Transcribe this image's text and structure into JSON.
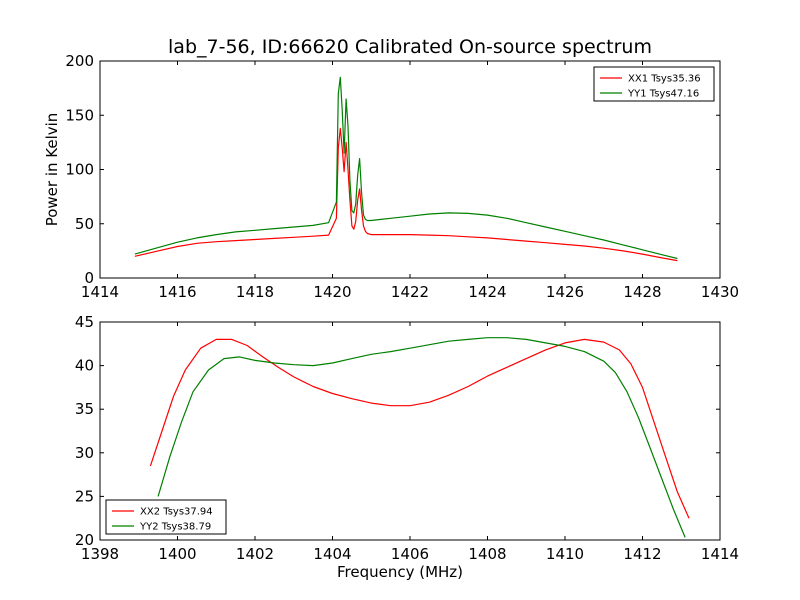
{
  "figure": {
    "title": "lab_7-56, ID:66620 Calibrated On-source spectrum"
  },
  "chart_data": [
    {
      "type": "line",
      "title": "lab_7-56, ID:66620 Calibrated On-source spectrum",
      "xlabel": "",
      "ylabel": "Power in Kelvin",
      "xlim": [
        1414,
        1430
      ],
      "ylim": [
        0,
        200
      ],
      "xticks": [
        1414,
        1416,
        1418,
        1420,
        1422,
        1424,
        1426,
        1428,
        1430
      ],
      "yticks": [
        0,
        50,
        100,
        150,
        200
      ],
      "grid": false,
      "legend_position": "top-right",
      "series": [
        {
          "name": "XX1 Tsys35.36",
          "color": "#ff0000",
          "x": [
            1414.9,
            1415.5,
            1416.0,
            1416.5,
            1417.0,
            1417.5,
            1418.0,
            1418.5,
            1419.0,
            1419.5,
            1419.9,
            1420.1,
            1420.15,
            1420.2,
            1420.25,
            1420.3,
            1420.35,
            1420.4,
            1420.45,
            1420.5,
            1420.55,
            1420.6,
            1420.65,
            1420.7,
            1420.75,
            1420.8,
            1420.85,
            1420.9,
            1421.0,
            1421.5,
            1422.0,
            1422.5,
            1423.0,
            1423.5,
            1424.0,
            1424.5,
            1425.0,
            1425.5,
            1426.0,
            1426.5,
            1427.0,
            1427.5,
            1428.0,
            1428.5,
            1428.9
          ],
          "y": [
            20,
            25,
            29,
            32,
            33.5,
            34.5,
            35.5,
            36.5,
            37.5,
            38.5,
            39.5,
            55,
            120,
            138,
            120,
            98,
            125,
            100,
            72,
            48,
            45,
            52,
            72,
            82,
            62,
            48,
            43,
            41,
            40,
            40,
            40,
            39.5,
            39,
            38,
            37,
            35.5,
            34,
            32.5,
            31,
            29.5,
            27.5,
            25,
            22,
            18.5,
            16
          ]
        },
        {
          "name": "YY1 Tsys47.16",
          "color": "#008000",
          "x": [
            1414.9,
            1415.5,
            1416.0,
            1416.5,
            1417.0,
            1417.5,
            1418.0,
            1418.5,
            1419.0,
            1419.5,
            1419.9,
            1420.1,
            1420.15,
            1420.2,
            1420.25,
            1420.3,
            1420.35,
            1420.4,
            1420.45,
            1420.5,
            1420.55,
            1420.6,
            1420.65,
            1420.7,
            1420.75,
            1420.8,
            1420.85,
            1420.9,
            1421.0,
            1421.5,
            1422.0,
            1422.5,
            1423.0,
            1423.5,
            1424.0,
            1424.5,
            1425.0,
            1425.5,
            1426.0,
            1426.5,
            1427.0,
            1427.5,
            1428.0,
            1428.5,
            1428.9
          ],
          "y": [
            22,
            28,
            33,
            37,
            40,
            42.5,
            44,
            45.5,
            47,
            48.5,
            51,
            70,
            170,
            185,
            155,
            115,
            165,
            140,
            90,
            62,
            60,
            68,
            95,
            110,
            78,
            58,
            54,
            53,
            53,
            55,
            57,
            59,
            60,
            59.5,
            58,
            55,
            51,
            47,
            43,
            39,
            35,
            30.5,
            26,
            21.5,
            18
          ]
        }
      ]
    },
    {
      "type": "line",
      "title": "",
      "xlabel": "Frequency (MHz)",
      "ylabel": "",
      "xlim": [
        1398,
        1414
      ],
      "ylim": [
        20,
        45
      ],
      "xticks": [
        1398,
        1400,
        1402,
        1404,
        1406,
        1408,
        1410,
        1412,
        1414
      ],
      "yticks": [
        20,
        25,
        30,
        35,
        40,
        45
      ],
      "grid": false,
      "legend_position": "bottom-left",
      "series": [
        {
          "name": "XX2 Tsys37.94",
          "color": "#ff0000",
          "x": [
            1399.3,
            1399.6,
            1399.9,
            1400.2,
            1400.6,
            1401.0,
            1401.4,
            1401.8,
            1402.2,
            1402.6,
            1403.0,
            1403.5,
            1404.0,
            1404.5,
            1405.0,
            1405.5,
            1406.0,
            1406.5,
            1407.0,
            1407.5,
            1408.0,
            1408.5,
            1409.0,
            1409.5,
            1410.0,
            1410.5,
            1411.0,
            1411.4,
            1411.7,
            1412.0,
            1412.3,
            1412.6,
            1412.9,
            1413.2
          ],
          "y": [
            28.5,
            32.5,
            36.5,
            39.5,
            42,
            43,
            43,
            42.3,
            41,
            39.8,
            38.7,
            37.6,
            36.8,
            36.2,
            35.7,
            35.4,
            35.4,
            35.8,
            36.6,
            37.6,
            38.8,
            39.8,
            40.8,
            41.8,
            42.6,
            43,
            42.7,
            41.8,
            40.2,
            37.5,
            33.5,
            29.5,
            25.5,
            22.5
          ]
        },
        {
          "name": "YY2 Tsys38.79",
          "color": "#008000",
          "x": [
            1399.5,
            1399.8,
            1400.1,
            1400.4,
            1400.8,
            1401.2,
            1401.6,
            1402.0,
            1402.5,
            1403.0,
            1403.5,
            1404.0,
            1404.5,
            1405.0,
            1405.5,
            1406.0,
            1406.5,
            1407.0,
            1407.5,
            1408.0,
            1408.5,
            1409.0,
            1409.5,
            1410.0,
            1410.5,
            1411.0,
            1411.3,
            1411.6,
            1411.9,
            1412.2,
            1412.5,
            1412.8,
            1413.1
          ],
          "y": [
            25,
            29.5,
            33.5,
            37,
            39.5,
            40.8,
            41,
            40.6,
            40.3,
            40.1,
            40,
            40.3,
            40.8,
            41.3,
            41.6,
            42,
            42.4,
            42.8,
            43,
            43.2,
            43.2,
            43,
            42.6,
            42.2,
            41.6,
            40.5,
            39.2,
            37,
            34,
            30.5,
            27,
            23.5,
            20.3
          ]
        }
      ]
    }
  ]
}
